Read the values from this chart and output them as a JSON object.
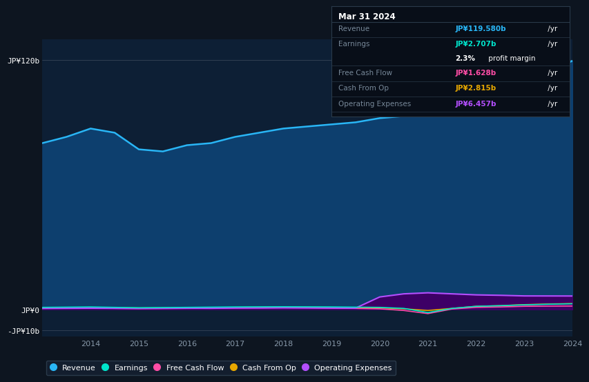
{
  "bg_color": "#0d1520",
  "plot_bg_color": "#0d1f35",
  "years": [
    2013.0,
    2013.5,
    2014.0,
    2014.5,
    2015.0,
    2015.5,
    2016.0,
    2016.5,
    2017.0,
    2017.5,
    2018.0,
    2018.5,
    2019.0,
    2019.5,
    2020.0,
    2020.5,
    2021.0,
    2021.5,
    2022.0,
    2022.5,
    2023.0,
    2023.5,
    2024.0
  ],
  "revenue": [
    80,
    83,
    87,
    85,
    77,
    76,
    79,
    80,
    83,
    85,
    87,
    88,
    89,
    90,
    92,
    93,
    94,
    95,
    98,
    103,
    108,
    114,
    119.58
  ],
  "earnings": [
    1.0,
    1.1,
    1.2,
    1.0,
    0.8,
    0.9,
    1.0,
    1.1,
    1.2,
    1.25,
    1.3,
    1.25,
    1.2,
    1.1,
    1.0,
    0.5,
    -1.5,
    0.5,
    1.5,
    1.8,
    2.2,
    2.5,
    2.707
  ],
  "free_cash_flow": [
    0.5,
    0.55,
    0.6,
    0.5,
    0.4,
    0.45,
    0.5,
    0.55,
    0.7,
    0.75,
    0.8,
    0.75,
    0.6,
    0.5,
    0.3,
    -0.5,
    -2.0,
    0.2,
    1.0,
    1.2,
    1.5,
    1.6,
    1.628
  ],
  "cash_from_op": [
    0.8,
    0.85,
    0.9,
    0.85,
    0.7,
    0.75,
    0.8,
    0.85,
    1.0,
    1.05,
    1.1,
    1.05,
    1.0,
    0.9,
    0.8,
    0.3,
    -0.5,
    0.5,
    1.5,
    1.8,
    2.3,
    2.6,
    2.815
  ],
  "operating_expenses": [
    0.5,
    0.55,
    0.6,
    0.55,
    0.5,
    0.55,
    0.6,
    0.55,
    0.7,
    0.72,
    0.8,
    0.75,
    0.7,
    0.65,
    6.0,
    7.5,
    8.0,
    7.5,
    7.0,
    6.8,
    6.5,
    6.48,
    6.457
  ],
  "revenue_color": "#29b6f6",
  "earnings_color": "#00e5cc",
  "free_cash_flow_color": "#ff4da6",
  "cash_from_op_color": "#e8a800",
  "operating_expenses_color": "#b44fff",
  "revenue_fill_color": "#0d3f6e",
  "operating_expenses_fill_color": "#3d0066",
  "ylim_min": -13,
  "ylim_max": 130,
  "yticks": [
    120,
    0,
    -10
  ],
  "ytick_labels": [
    "JP¥120b",
    "JP¥0",
    "-JP¥10b"
  ],
  "xtick_positions": [
    2014,
    2015,
    2016,
    2017,
    2018,
    2019,
    2020,
    2021,
    2022,
    2023,
    2024
  ],
  "xtick_labels": [
    "2014",
    "2015",
    "2016",
    "2017",
    "2018",
    "2019",
    "2020",
    "2021",
    "2022",
    "2023",
    "2024"
  ],
  "info_box": {
    "date": "Mar 31 2024",
    "revenue_label": "Revenue",
    "revenue_value": "JP¥119.580b",
    "revenue_color": "#29b6f6",
    "earnings_label": "Earnings",
    "earnings_value": "JP¥2.707b",
    "earnings_color": "#00e5cc",
    "fcf_label": "Free Cash Flow",
    "fcf_value": "JP¥1.628b",
    "fcf_color": "#ff4da6",
    "cashop_label": "Cash From Op",
    "cashop_value": "JP¥2.815b",
    "cashop_color": "#e8a800",
    "opex_label": "Operating Expenses",
    "opex_value": "JP¥6.457b",
    "opex_color": "#b44fff"
  },
  "legend_items": [
    "Revenue",
    "Earnings",
    "Free Cash Flow",
    "Cash From Op",
    "Operating Expenses"
  ],
  "legend_colors": [
    "#29b6f6",
    "#00e5cc",
    "#ff4da6",
    "#e8a800",
    "#b44fff"
  ]
}
